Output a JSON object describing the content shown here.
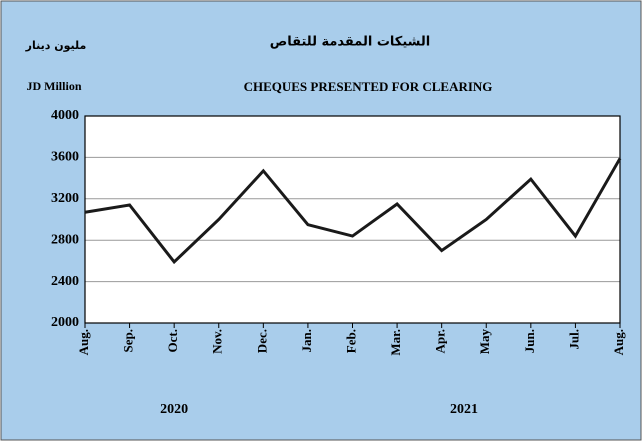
{
  "chart_data": {
    "type": "line",
    "title": "CHEQUES PRESENTED FOR CLEARING",
    "title_ar": "الشيكات المقدمة للتقاص",
    "y_label": "JD Million",
    "y_label_ar": "مليون دينار",
    "categories": [
      "Aug.",
      "Sep.",
      "Oct.",
      "Nov.",
      "Dec.",
      "Jan.",
      "Feb.",
      "Mar.",
      "Apr.",
      "May",
      "Jun.",
      "Jul.",
      "Aug."
    ],
    "x_groups": [
      "2020",
      "2021"
    ],
    "values": [
      3070,
      3140,
      2590,
      3000,
      3470,
      2950,
      2840,
      3150,
      2700,
      3000,
      3390,
      2840,
      3590
    ],
    "color": "#1a1a1a",
    "ylim": [
      2000,
      4000
    ],
    "yticks": [
      2000,
      2400,
      2800,
      3200,
      3600,
      4000
    ],
    "grid": true
  }
}
